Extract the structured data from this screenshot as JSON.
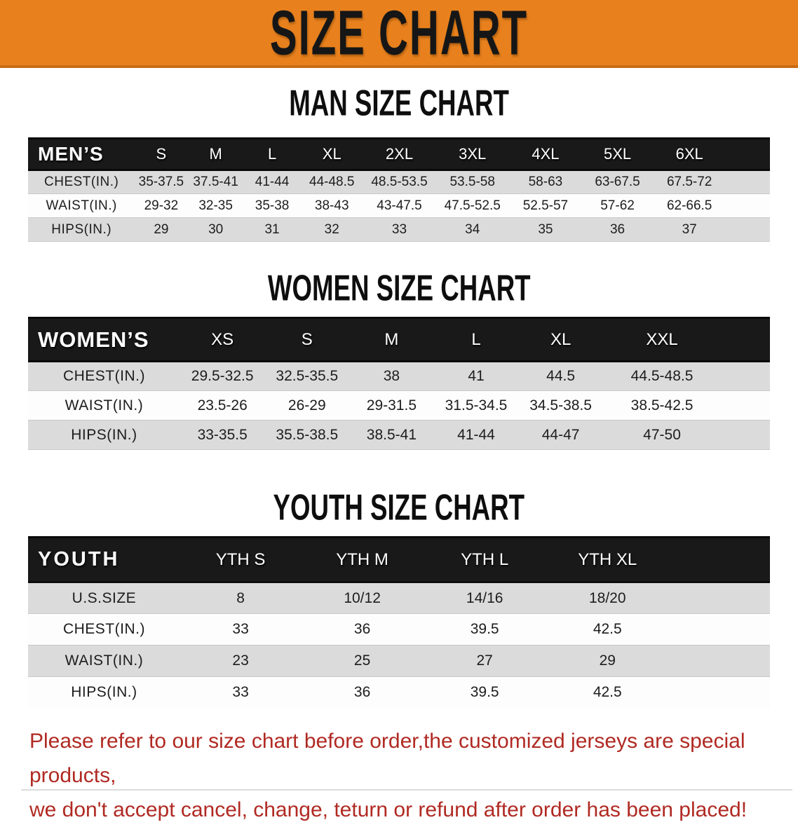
{
  "banner": {
    "title": "SIZE CHART"
  },
  "sections": [
    {
      "id": "men",
      "heading": "MAN SIZE CHART",
      "header_label": "MEN’S",
      "columns": [
        "S",
        "M",
        "L",
        "XL",
        "2XL",
        "3XL",
        "4XL",
        "5XL",
        "6XL"
      ],
      "rows": [
        {
          "label": "CHEST(IN.)",
          "values": [
            "35-37.5",
            "37.5-41",
            "41-44",
            "44-48.5",
            "48.5-53.5",
            "53.5-58",
            "58-63",
            "63-67.5",
            "67.5-72"
          ]
        },
        {
          "label": "WAIST(IN.)",
          "values": [
            "29-32",
            "32-35",
            "35-38",
            "38-43",
            "43-47.5",
            "47.5-52.5",
            "52.5-57",
            "57-62",
            "62-66.5"
          ]
        },
        {
          "label": "HIPS(IN.)",
          "values": [
            "29",
            "30",
            "31",
            "32",
            "33",
            "34",
            "35",
            "36",
            "37"
          ]
        }
      ]
    },
    {
      "id": "women",
      "heading": "WOMEN SIZE CHART",
      "header_label": "WOMEN’S",
      "columns": [
        "XS",
        "S",
        "M",
        "L",
        "XL",
        "XXL"
      ],
      "rows": [
        {
          "label": "CHEST(IN.)",
          "values": [
            "29.5-32.5",
            "32.5-35.5",
            "38",
            "41",
            "44.5",
            "44.5-48.5"
          ]
        },
        {
          "label": "WAIST(IN.)",
          "values": [
            "23.5-26",
            "26-29",
            "29-31.5",
            "31.5-34.5",
            "34.5-38.5",
            "38.5-42.5"
          ]
        },
        {
          "label": "HIPS(IN.)",
          "values": [
            "33-35.5",
            "35.5-38.5",
            "38.5-41",
            "41-44",
            "44-47",
            "47-50"
          ]
        }
      ]
    },
    {
      "id": "youth",
      "heading": "YOUTH SIZE CHART",
      "header_label": "YOUTH",
      "columns": [
        "YTH S",
        "YTH M",
        "YTH L",
        "YTH XL"
      ],
      "rows": [
        {
          "label": "U.S.SIZE",
          "values": [
            "8",
            "10/12",
            "14/16",
            "18/20"
          ]
        },
        {
          "label": "CHEST(IN.)",
          "values": [
            "33",
            "36",
            "39.5",
            "42.5"
          ]
        },
        {
          "label": "WAIST(IN.)",
          "values": [
            "23",
            "25",
            "27",
            "29"
          ]
        },
        {
          "label": "HIPS(IN.)",
          "values": [
            "33",
            "36",
            "39.5",
            "42.5"
          ]
        }
      ]
    }
  ],
  "disclaimer": {
    "lines": [
      "Please refer to our size chart before order,the customized jerseys are special products,",
      "we don't accept cancel, change, teturn or refund after order has been placed!"
    ]
  },
  "colors": {
    "banner-orange": "#E8811D",
    "header-black": "#191919",
    "row-shade": "#DBDBDB",
    "disclaimer-red": "#B02A23"
  }
}
